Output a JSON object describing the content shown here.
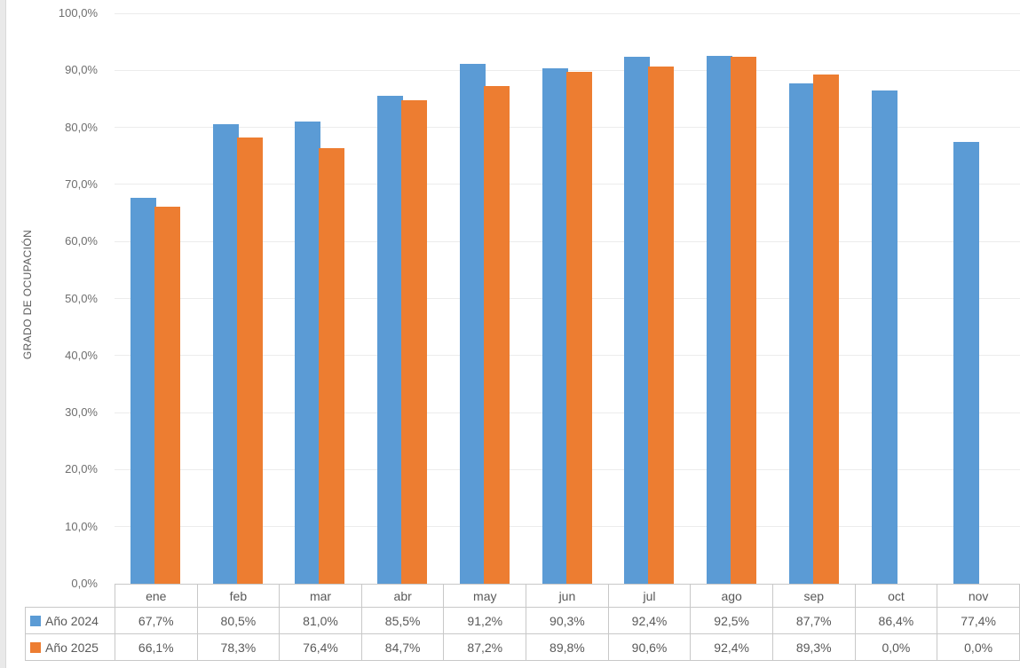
{
  "chart_data": {
    "type": "bar",
    "title": "",
    "categories": [
      "ene",
      "feb",
      "mar",
      "abr",
      "may",
      "jun",
      "jul",
      "ago",
      "sep",
      "oct",
      "nov"
    ],
    "series": [
      {
        "name": "Año 2024",
        "color": "#5B9BD5",
        "values": [
          67.7,
          80.5,
          81.0,
          85.5,
          91.2,
          90.3,
          92.4,
          92.5,
          87.7,
          86.4,
          77.4
        ],
        "display": [
          "67,7%",
          "80,5%",
          "81,0%",
          "85,5%",
          "91,2%",
          "90,3%",
          "92,4%",
          "92,5%",
          "87,7%",
          "86,4%",
          "77,4%"
        ]
      },
      {
        "name": "Año 2025",
        "color": "#ED7D31",
        "values": [
          66.1,
          78.3,
          76.4,
          84.7,
          87.2,
          89.8,
          90.6,
          92.4,
          89.3,
          0.0,
          0.0
        ],
        "display": [
          "66,1%",
          "78,3%",
          "76,4%",
          "84,7%",
          "87,2%",
          "89,8%",
          "90,6%",
          "92,4%",
          "89,3%",
          "0,0%",
          "0,0%"
        ]
      }
    ],
    "xlabel": "",
    "ylabel": "GRADO DE OCUPACIÓN",
    "ylim": [
      0,
      100
    ],
    "ytick_step": 10,
    "ytick_labels": [
      "0,0%",
      "10,0%",
      "20,0%",
      "30,0%",
      "40,0%",
      "50,0%",
      "60,0%",
      "70,0%",
      "80,0%",
      "90,0%",
      "100,0%"
    ],
    "grid": true,
    "legend_position": "data-table-left",
    "data_table_shown": true
  }
}
